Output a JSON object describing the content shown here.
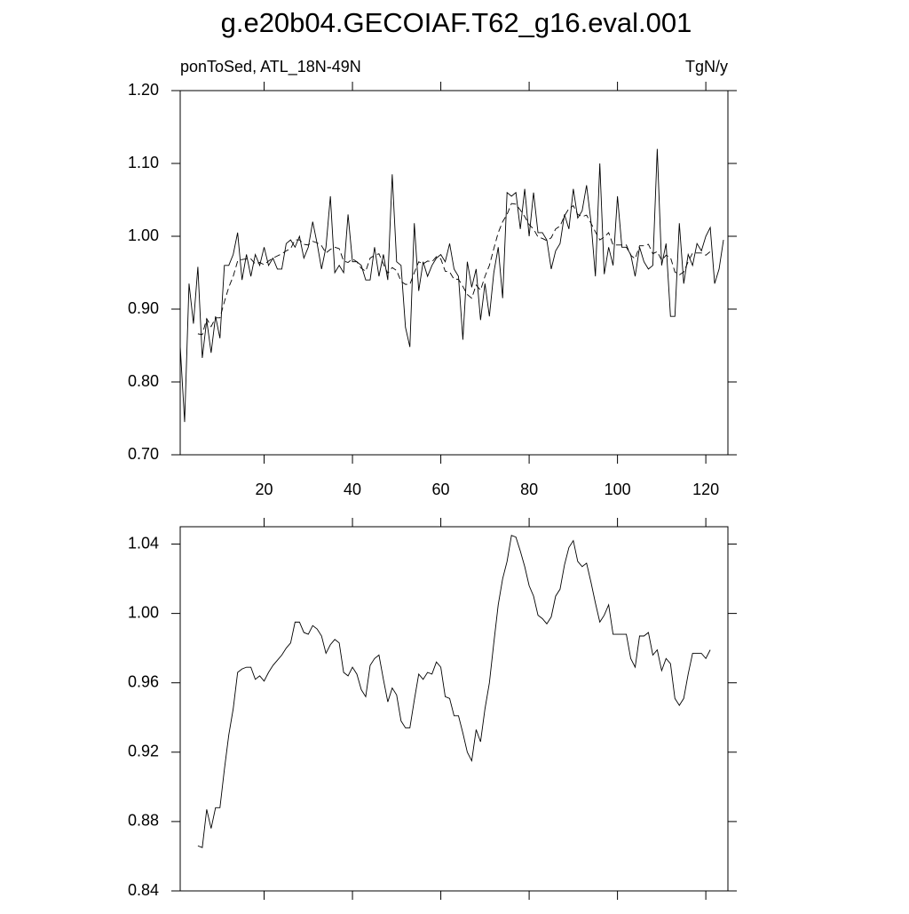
{
  "chart_data": [
    {
      "type": "line",
      "title": "g.e20b04.GECOIAF.T62_g16.eval.001",
      "subtitle_left": "ponToSed, ATL_18N-49N",
      "subtitle_right": "TgN/y",
      "x": [
        1,
        2,
        3,
        4,
        5,
        6,
        7,
        8,
        9,
        10,
        11,
        12,
        13,
        14,
        15,
        16,
        17,
        18,
        19,
        20,
        21,
        22,
        23,
        24,
        25,
        26,
        27,
        28,
        29,
        30,
        31,
        32,
        33,
        34,
        35,
        36,
        37,
        38,
        39,
        40,
        41,
        42,
        43,
        44,
        45,
        46,
        47,
        48,
        49,
        50,
        51,
        52,
        53,
        54,
        55,
        56,
        57,
        58,
        59,
        60,
        61,
        62,
        63,
        64,
        65,
        66,
        67,
        68,
        69,
        70,
        71,
        72,
        73,
        74,
        75,
        76,
        77,
        78,
        79,
        80,
        81,
        82,
        83,
        84,
        85,
        86,
        87,
        88,
        89,
        90,
        91,
        92,
        93,
        94,
        95,
        96,
        97,
        98,
        99,
        100,
        101,
        102,
        103,
        104,
        105,
        106,
        107,
        108,
        109,
        110,
        111,
        112,
        113,
        114,
        115,
        116,
        117,
        118,
        119,
        120,
        121,
        122,
        123,
        124
      ],
      "series": [
        {
          "color": "#000000",
          "line_style": "solid",
          "values": [
            0.849,
            0.745,
            0.935,
            0.88,
            0.958,
            0.833,
            0.885,
            0.84,
            0.89,
            0.86,
            0.96,
            0.96,
            0.975,
            1.005,
            0.94,
            0.975,
            0.945,
            0.975,
            0.96,
            0.985,
            0.96,
            0.97,
            0.955,
            0.955,
            0.99,
            0.995,
            0.985,
            1.0,
            0.97,
            0.985,
            1.02,
            0.99,
            0.955,
            0.985,
            1.055,
            0.95,
            0.96,
            0.95,
            1.03,
            0.965,
            0.965,
            0.96,
            0.94,
            0.94,
            0.985,
            0.945,
            0.975,
            0.94,
            1.085,
            0.965,
            0.96,
            0.875,
            0.848,
            1.018,
            0.925,
            0.965,
            0.945,
            0.96,
            0.97,
            0.975,
            0.965,
            0.99,
            0.955,
            0.945,
            0.858,
            0.965,
            0.93,
            0.955,
            0.885,
            0.935,
            0.89,
            0.95,
            0.985,
            0.915,
            1.06,
            1.055,
            1.06,
            1.01,
            1.065,
            1.0,
            1.06,
            1.005,
            1.005,
            0.995,
            0.955,
            0.98,
            0.99,
            1.03,
            1.01,
            1.065,
            1.025,
            1.035,
            1.07,
            1.02,
            0.945,
            1.1,
            0.948,
            0.985,
            0.96,
            1.055,
            0.985,
            0.985,
            0.975,
            0.945,
            0.985,
            0.965,
            0.955,
            0.96,
            1.12,
            0.96,
            0.99,
            0.89,
            0.89,
            1.018,
            0.935,
            0.975,
            0.96,
            0.99,
            0.98,
            1.0,
            1.012,
            0.935,
            0.955,
            0.995
          ]
        },
        {
          "color": "#000000",
          "line_style": "dashed",
          "values": [
            null,
            null,
            null,
            null,
            0.866,
            0.865,
            0.887,
            0.876,
            0.888,
            0.888,
            0.91,
            0.93,
            0.945,
            0.966,
            0.968,
            0.969,
            0.969,
            0.962,
            0.964,
            0.961,
            0.966,
            0.97,
            0.973,
            0.976,
            0.98,
            0.983,
            0.995,
            0.995,
            0.989,
            0.988,
            0.993,
            0.991,
            0.987,
            0.977,
            0.982,
            0.985,
            0.983,
            0.966,
            0.964,
            0.969,
            0.965,
            0.956,
            0.952,
            0.97,
            0.974,
            0.976,
            0.962,
            0.949,
            0.957,
            0.953,
            0.938,
            0.934,
            0.934,
            0.95,
            0.965,
            0.962,
            0.966,
            0.965,
            0.972,
            0.969,
            0.952,
            0.951,
            0.941,
            0.941,
            0.931,
            0.92,
            0.915,
            0.933,
            0.926,
            0.945,
            0.96,
            0.983,
            1.005,
            1.02,
            1.03,
            1.045,
            1.044,
            1.036,
            1.027,
            1.016,
            1.01,
            0.999,
            0.997,
            0.994,
            0.998,
            1.01,
            1.014,
            1.028,
            1.038,
            1.042,
            1.03,
            1.027,
            1.029,
            1.018,
            1.006,
            0.995,
            0.999,
            1.005,
            0.988,
            0.988,
            0.988,
            0.988,
            0.974,
            0.969,
            0.987,
            0.987,
            0.989,
            0.976,
            0.979,
            0.967,
            0.974,
            0.971,
            0.951,
            0.947,
            0.951,
            0.965,
            0.977,
            0.977,
            0.977,
            0.974,
            0.979,
            null,
            null,
            null
          ]
        }
      ],
      "xlim": [
        1,
        125
      ],
      "xticks": [
        20,
        40,
        60,
        80,
        100,
        120
      ],
      "ylim": [
        0.7,
        1.2
      ],
      "yticks": [
        {
          "value": 0.7,
          "label": "0.70"
        },
        {
          "value": 0.8,
          "label": "0.80"
        },
        {
          "value": 0.9,
          "label": "0.90"
        },
        {
          "value": 1,
          "label": "1.00"
        },
        {
          "value": 1.1,
          "label": "1.10"
        },
        {
          "value": 1.2,
          "label": "1.20"
        }
      ]
    },
    {
      "type": "line",
      "x": [
        5,
        6,
        7,
        8,
        9,
        10,
        11,
        12,
        13,
        14,
        15,
        16,
        17,
        18,
        19,
        20,
        21,
        22,
        23,
        24,
        25,
        26,
        27,
        28,
        29,
        30,
        31,
        32,
        33,
        34,
        35,
        36,
        37,
        38,
        39,
        40,
        41,
        42,
        43,
        44,
        45,
        46,
        47,
        48,
        49,
        50,
        51,
        52,
        53,
        54,
        55,
        56,
        57,
        58,
        59,
        60,
        61,
        62,
        63,
        64,
        65,
        66,
        67,
        68,
        69,
        70,
        71,
        72,
        73,
        74,
        75,
        76,
        77,
        78,
        79,
        80,
        81,
        82,
        83,
        84,
        85,
        86,
        87,
        88,
        89,
        90,
        91,
        92,
        93,
        94,
        95,
        96,
        97,
        98,
        99,
        100,
        101,
        102,
        103,
        104,
        105,
        106,
        107,
        108,
        109,
        110,
        111,
        112,
        113,
        114,
        115,
        116,
        117,
        118,
        119,
        120,
        121
      ],
      "series": [
        {
          "color": "#000000",
          "line_style": "solid",
          "values": [
            0.866,
            0.865,
            0.887,
            0.876,
            0.888,
            0.888,
            0.91,
            0.93,
            0.945,
            0.966,
            0.968,
            0.969,
            0.969,
            0.962,
            0.964,
            0.961,
            0.966,
            0.97,
            0.973,
            0.976,
            0.98,
            0.983,
            0.995,
            0.995,
            0.989,
            0.988,
            0.993,
            0.991,
            0.987,
            0.977,
            0.982,
            0.985,
            0.983,
            0.966,
            0.964,
            0.969,
            0.965,
            0.956,
            0.952,
            0.97,
            0.974,
            0.976,
            0.962,
            0.949,
            0.957,
            0.953,
            0.938,
            0.934,
            0.934,
            0.95,
            0.965,
            0.962,
            0.966,
            0.965,
            0.972,
            0.969,
            0.952,
            0.951,
            0.941,
            0.941,
            0.931,
            0.92,
            0.915,
            0.933,
            0.926,
            0.945,
            0.96,
            0.983,
            1.005,
            1.02,
            1.03,
            1.045,
            1.044,
            1.036,
            1.027,
            1.016,
            1.01,
            0.999,
            0.997,
            0.994,
            0.998,
            1.01,
            1.014,
            1.028,
            1.038,
            1.042,
            1.03,
            1.027,
            1.029,
            1.018,
            1.006,
            0.995,
            0.999,
            1.005,
            0.988,
            0.988,
            0.988,
            0.988,
            0.974,
            0.969,
            0.987,
            0.987,
            0.989,
            0.976,
            0.979,
            0.967,
            0.974,
            0.971,
            0.951,
            0.947,
            0.951,
            0.965,
            0.977,
            0.977,
            0.977,
            0.974,
            0.979
          ]
        }
      ],
      "xlim": [
        1,
        125
      ],
      "ylim": [
        0.84,
        1.05
      ],
      "yticks": [
        {
          "value": 0.84,
          "label": "0.84"
        },
        {
          "value": 0.88,
          "label": "0.88"
        },
        {
          "value": 0.92,
          "label": "0.92"
        },
        {
          "value": 0.96,
          "label": "0.96"
        },
        {
          "value": 1,
          "label": "1.00"
        },
        {
          "value": 1.04,
          "label": "1.04"
        }
      ]
    }
  ]
}
